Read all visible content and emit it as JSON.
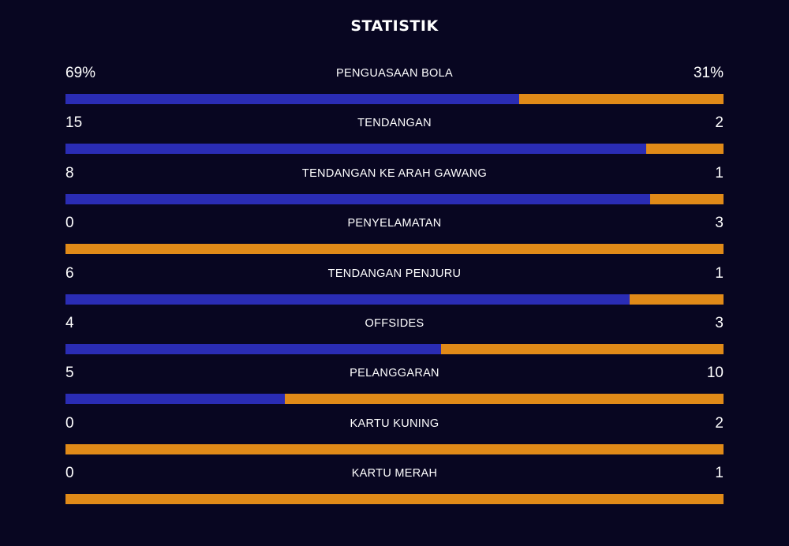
{
  "title": "STATISTIK",
  "colors": {
    "home": "#2a2cb4",
    "away": "#e08a18",
    "background": "#080621"
  },
  "stats": [
    {
      "label": "PENGUASAAN BOLA",
      "home": "69%",
      "away": "31%",
      "home_share": 0.69
    },
    {
      "label": "TENDANGAN",
      "home": "15",
      "away": "2",
      "home_share": 0.882
    },
    {
      "label": "TENDANGAN KE ARAH GAWANG",
      "home": "8",
      "away": "1",
      "home_share": 0.889
    },
    {
      "label": "PENYELAMATAN",
      "home": "0",
      "away": "3",
      "home_share": 0
    },
    {
      "label": "TENDANGAN PENJURU",
      "home": "6",
      "away": "1",
      "home_share": 0.857
    },
    {
      "label": "OFFSIDES",
      "home": "4",
      "away": "3",
      "home_share": 0.571
    },
    {
      "label": "PELANGGARAN",
      "home": "5",
      "away": "10",
      "home_share": 0.333
    },
    {
      "label": "KARTU KUNING",
      "home": "0",
      "away": "2",
      "home_share": 0
    },
    {
      "label": "KARTU MERAH",
      "home": "0",
      "away": "1",
      "home_share": 0
    }
  ]
}
